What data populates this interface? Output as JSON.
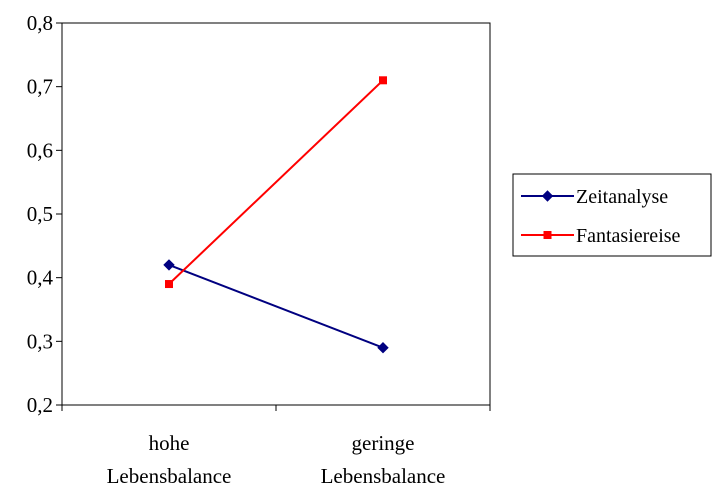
{
  "chart_data": {
    "type": "line",
    "categories": [
      [
        "hohe",
        "Lebensbalance"
      ],
      [
        "geringe",
        "Lebensbalance"
      ]
    ],
    "series": [
      {
        "name": "Zeitanalyse",
        "values": [
          0.42,
          0.29
        ],
        "color": "#000080",
        "marker": "diamond"
      },
      {
        "name": "Fantasiereise",
        "values": [
          0.39,
          0.71
        ],
        "color": "#ff0000",
        "marker": "square"
      }
    ],
    "ylim": [
      0.2,
      0.8
    ],
    "yticks": [
      0.2,
      0.3,
      0.4,
      0.5,
      0.6,
      0.7,
      0.8
    ],
    "ytick_labels": [
      "0,2",
      "0,3",
      "0,4",
      "0,5",
      "0,6",
      "0,7",
      "0,8"
    ],
    "grid": false,
    "legend_position": "right"
  }
}
